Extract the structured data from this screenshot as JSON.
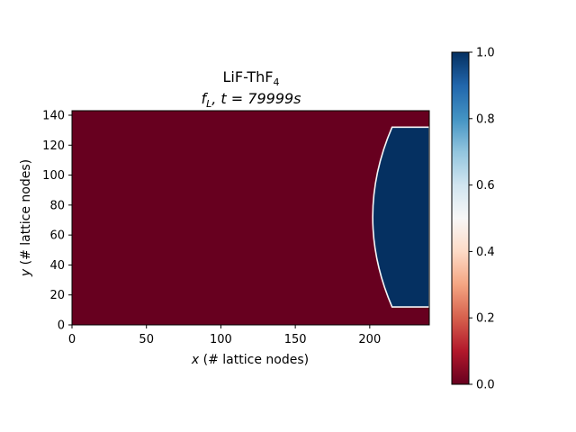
{
  "chart_data": {
    "type": "heatmap",
    "title_line1": "LiF-ThF",
    "title_line1_sub": "4",
    "title_line2_var": "f",
    "title_line2_var_sub": "L",
    "title_line2_rest": ", t = 79999s",
    "xlabel_var": "x",
    "xlabel_rest": " (# lattice nodes)",
    "ylabel_var": "y",
    "ylabel_rest": " (# lattice nodes)",
    "xlim": [
      0,
      240
    ],
    "ylim": [
      0,
      143
    ],
    "xticks": [
      0,
      50,
      100,
      150,
      200
    ],
    "yticks": [
      0,
      20,
      40,
      60,
      80,
      100,
      120,
      140
    ],
    "xtick_labels": [
      "0",
      "50",
      "100",
      "150",
      "200"
    ],
    "ytick_labels": [
      "0",
      "20",
      "40",
      "60",
      "80",
      "100",
      "120",
      "140"
    ],
    "colormap": "RdBu",
    "colorbar": {
      "range": [
        0,
        1
      ],
      "ticks": [
        0.0,
        0.2,
        0.4,
        0.6,
        0.8,
        1.0
      ],
      "tick_labels": [
        "0.0",
        "0.2",
        "0.4",
        "0.6",
        "0.8",
        "1.0"
      ]
    },
    "field": {
      "background_value": 0.0,
      "liquid_value": 1.0,
      "liquid_region": {
        "x_max": 240,
        "y_bottom": 12,
        "y_top": 132,
        "front_x_at_edges": 215,
        "front_x_at_center": 202,
        "center_y": 72
      }
    },
    "colors": {
      "low": "#67001f",
      "high": "#053061",
      "interface": "#f7f7f7"
    }
  }
}
